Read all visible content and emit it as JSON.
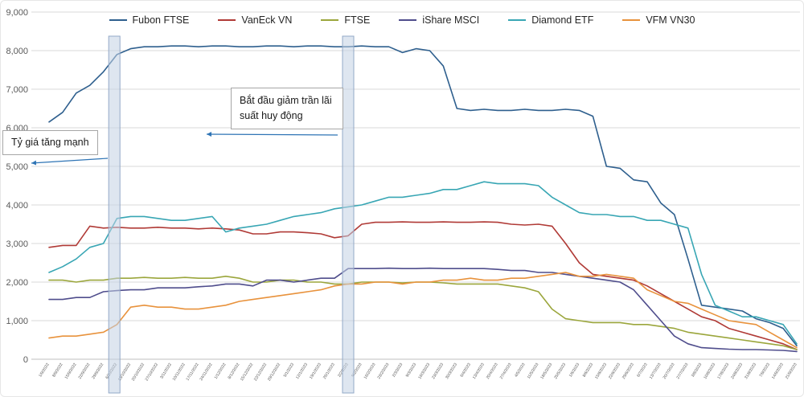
{
  "annotations": {
    "note1": "Tỷ giá tăng mạnh",
    "note2": "Bắt đầu giảm trần lãi suất huy động"
  },
  "chart_data": {
    "type": "line",
    "title": "",
    "xlabel": "",
    "ylabel": "",
    "ylim": [
      0,
      9000
    ],
    "yticks": [
      0,
      1000,
      2000,
      3000,
      4000,
      5000,
      6000,
      7000,
      8000,
      9000
    ],
    "grid": true,
    "legend_position": "top",
    "highlight_bands": [
      {
        "index": 4.8
      },
      {
        "index": 22.0
      }
    ],
    "x_labels": [
      "1/9/2022",
      "8/9/2022",
      "15/9/2022",
      "22/9/2022",
      "29/9/2022",
      "6/10/2022",
      "13/10/2022",
      "20/10/2022",
      "27/10/2022",
      "3/11/2022",
      "10/11/2022",
      "17/11/2022",
      "24/11/2022",
      "1/12/2022",
      "8/12/2022",
      "15/12/2022",
      "22/12/2022",
      "29/12/2022",
      "5/1/2023",
      "12/1/2023",
      "19/1/2023",
      "26/1/2023",
      "2/2/2023",
      "9/2/2023",
      "16/2/2023",
      "23/2/2023",
      "2/3/2023",
      "9/3/2023",
      "16/3/2023",
      "23/3/2023",
      "30/3/2023",
      "6/4/2023",
      "13/4/2023",
      "20/4/2023",
      "27/4/2023",
      "4/5/2023",
      "11/5/2023",
      "18/5/2023",
      "25/5/2023",
      "1/6/2023",
      "8/6/2023",
      "15/6/2023",
      "22/6/2023",
      "29/6/2023",
      "6/7/2023",
      "13/7/2023",
      "20/7/2023",
      "27/7/2023",
      "3/8/2023",
      "10/8/2023",
      "17/8/2023",
      "24/8/2023",
      "31/8/2023",
      "7/9/2023",
      "14/9/2023",
      "21/9/2023"
    ],
    "series": [
      {
        "name": "Fubon FTSE",
        "color": "#2e5f8e",
        "values": [
          6150,
          6400,
          6900,
          7100,
          7450,
          7900,
          8050,
          8100,
          8100,
          8120,
          8120,
          8100,
          8120,
          8120,
          8100,
          8100,
          8120,
          8120,
          8100,
          8120,
          8120,
          8100,
          8100,
          8120,
          8100,
          8100,
          7950,
          8050,
          8000,
          7600,
          6500,
          6450,
          6480,
          6450,
          6450,
          6480,
          6450,
          6450,
          6480,
          6450,
          6300,
          5000,
          4950,
          4650,
          4600,
          4050,
          3750,
          2600,
          1400,
          1350,
          1300,
          1250,
          1050,
          950,
          800,
          350
        ]
      },
      {
        "name": "VanEck VN",
        "color": "#b03a36",
        "values": [
          2900,
          2950,
          2950,
          3450,
          3400,
          3420,
          3400,
          3400,
          3420,
          3400,
          3400,
          3380,
          3400,
          3380,
          3350,
          3250,
          3250,
          3300,
          3300,
          3280,
          3250,
          3150,
          3200,
          3500,
          3550,
          3550,
          3560,
          3550,
          3550,
          3560,
          3550,
          3550,
          3560,
          3550,
          3500,
          3480,
          3500,
          3450,
          3000,
          2500,
          2200,
          2150,
          2100,
          2050,
          1900,
          1700,
          1500,
          1300,
          1100,
          1000,
          800,
          700,
          600,
          500,
          400,
          250
        ]
      },
      {
        "name": "FTSE",
        "color": "#9ba63c",
        "values": [
          2050,
          2050,
          2000,
          2050,
          2050,
          2100,
          2100,
          2120,
          2100,
          2100,
          2120,
          2100,
          2100,
          2150,
          2100,
          2000,
          2000,
          2050,
          2050,
          2000,
          2000,
          1950,
          1950,
          2000,
          2000,
          2000,
          1980,
          2000,
          2000,
          1980,
          1950,
          1950,
          1950,
          1950,
          1900,
          1850,
          1750,
          1300,
          1050,
          1000,
          950,
          950,
          950,
          900,
          900,
          850,
          800,
          700,
          650,
          600,
          550,
          500,
          450,
          400,
          350,
          250
        ]
      },
      {
        "name": "iShare MSCI",
        "color": "#4f4d8c",
        "values": [
          1550,
          1550,
          1600,
          1600,
          1750,
          1780,
          1800,
          1800,
          1850,
          1850,
          1850,
          1880,
          1900,
          1950,
          1950,
          1900,
          2050,
          2050,
          2000,
          2050,
          2100,
          2100,
          2350,
          2350,
          2350,
          2360,
          2350,
          2350,
          2360,
          2350,
          2350,
          2350,
          2350,
          2330,
          2300,
          2300,
          2250,
          2250,
          2200,
          2150,
          2100,
          2050,
          2000,
          1800,
          1400,
          1000,
          600,
          400,
          300,
          280,
          260,
          250,
          250,
          240,
          230,
          200
        ]
      },
      {
        "name": "Diamond ETF",
        "color": "#38a6b4",
        "values": [
          2250,
          2400,
          2600,
          2900,
          3000,
          3650,
          3700,
          3700,
          3650,
          3600,
          3600,
          3650,
          3700,
          3300,
          3400,
          3450,
          3500,
          3600,
          3700,
          3750,
          3800,
          3900,
          3950,
          4000,
          4100,
          4200,
          4200,
          4250,
          4300,
          4400,
          4400,
          4500,
          4600,
          4550,
          4550,
          4550,
          4500,
          4200,
          4000,
          3800,
          3750,
          3750,
          3700,
          3700,
          3600,
          3600,
          3500,
          3400,
          2200,
          1400,
          1250,
          1100,
          1100,
          1000,
          900,
          400
        ]
      },
      {
        "name": "VFM VN30",
        "color": "#e8923c",
        "values": [
          550,
          600,
          600,
          650,
          700,
          900,
          1350,
          1400,
          1350,
          1350,
          1300,
          1300,
          1350,
          1400,
          1500,
          1550,
          1600,
          1650,
          1700,
          1750,
          1800,
          1900,
          1950,
          1950,
          2000,
          2000,
          1950,
          2000,
          2000,
          2050,
          2050,
          2100,
          2050,
          2050,
          2100,
          2100,
          2150,
          2200,
          2250,
          2150,
          2150,
          2200,
          2150,
          2100,
          1800,
          1650,
          1500,
          1450,
          1300,
          1150,
          1000,
          950,
          900,
          700,
          500,
          300
        ]
      }
    ]
  }
}
